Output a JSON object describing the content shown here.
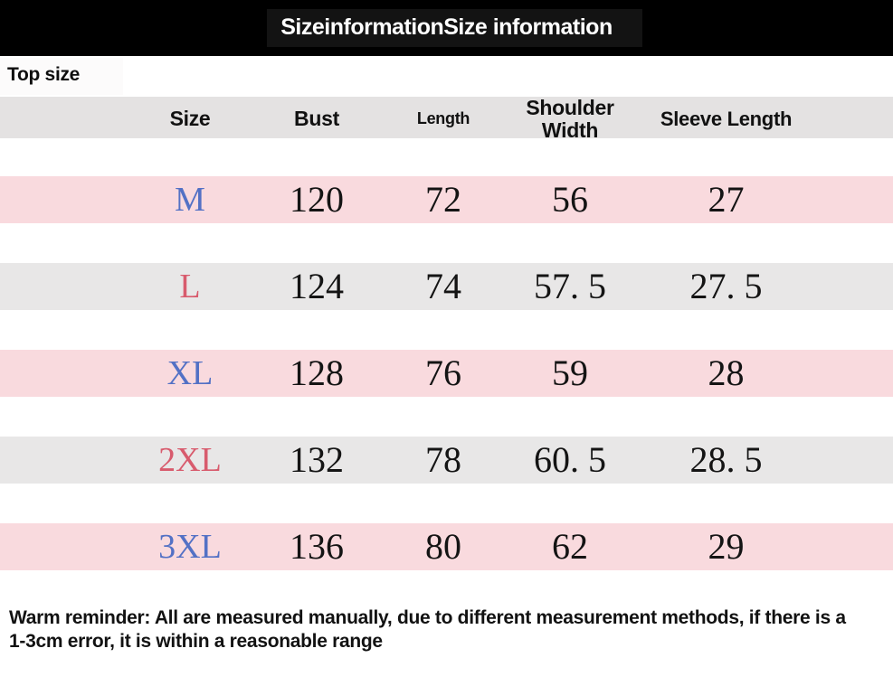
{
  "title_bar": {
    "title": "SizeinformationSize information",
    "bar_color": "#000000",
    "text_color": "#ffffff"
  },
  "section_label": "Top size",
  "table": {
    "columns": [
      {
        "label": "Size"
      },
      {
        "label": "Bust"
      },
      {
        "label": "Length"
      },
      {
        "label": "Shoulder Width"
      },
      {
        "label": "Sleeve Length"
      }
    ],
    "rows": [
      {
        "size": "M",
        "size_color": "#5371c5",
        "bg": "#f9dade",
        "values": [
          "120",
          "72",
          "56",
          "27"
        ]
      },
      {
        "size": "L",
        "size_color": "#d85b6d",
        "bg": "#e8e7e7",
        "values": [
          "124",
          "74",
          "57. 5",
          "27. 5"
        ]
      },
      {
        "size": "XL",
        "size_color": "#5371c5",
        "bg": "#f9dade",
        "values": [
          "128",
          "76",
          "59",
          "28"
        ]
      },
      {
        "size": "2XL",
        "size_color": "#d85b6d",
        "bg": "#e8e7e7",
        "values": [
          "132",
          "78",
          "60. 5",
          "28. 5"
        ]
      },
      {
        "size": "3XL",
        "size_color": "#5371c5",
        "bg": "#f9dade",
        "values": [
          "136",
          "80",
          "62",
          "29"
        ]
      }
    ],
    "header_bg": "#e4e2e2",
    "row_pink": "#f9dade",
    "row_gray": "#e8e7e7"
  },
  "footer_note": "Warm reminder: All are measured manually, due to different measurement methods, if there is a 1-3cm error, it is within a reasonable range"
}
